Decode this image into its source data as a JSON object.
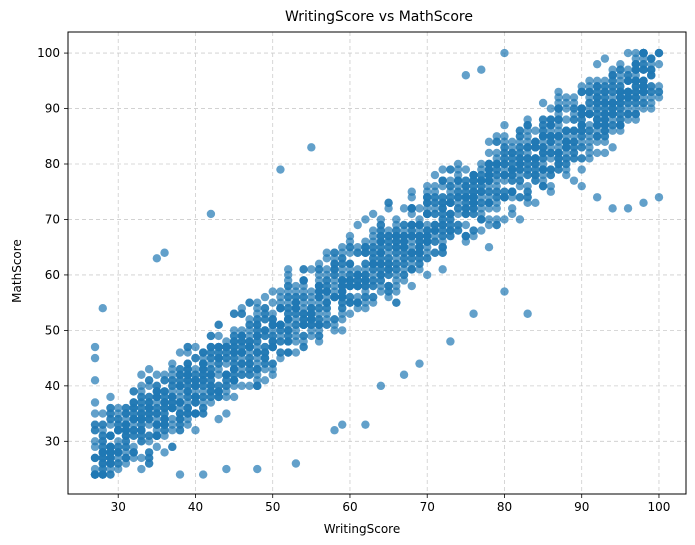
{
  "chart_data": {
    "type": "scatter",
    "title": "WritingScore vs MathScore",
    "xlabel": "WritingScore",
    "ylabel": "MathScore",
    "xlim": [
      23.5,
      103.5
    ],
    "ylim": [
      20.5,
      103.8
    ],
    "xticks": [
      30,
      40,
      50,
      60,
      70,
      80,
      90,
      100
    ],
    "yticks": [
      30,
      40,
      50,
      60,
      70,
      80,
      90,
      100
    ],
    "grid": true,
    "grid_style": "dashed",
    "legend": "none",
    "marker_color": "#1f77b4",
    "marker_alpha": 0.7,
    "relationship": {
      "x_range": [
        27,
        100
      ],
      "y_range": [
        24,
        100
      ],
      "trend": "strong positive linear",
      "approx_slope": 0.95,
      "approx_intercept": 2,
      "band_half_width": 11,
      "point_count": 2000
    },
    "points_sample": [
      [
        28,
        54
      ],
      [
        35,
        63
      ],
      [
        36,
        64
      ],
      [
        42,
        71
      ],
      [
        51,
        79
      ],
      [
        55,
        83
      ],
      [
        75,
        96
      ],
      [
        77,
        97
      ],
      [
        80,
        100
      ],
      [
        59,
        33
      ],
      [
        62,
        33
      ],
      [
        58,
        32
      ],
      [
        53,
        26
      ],
      [
        48,
        25
      ],
      [
        44,
        25
      ],
      [
        41,
        24
      ],
      [
        38,
        24
      ],
      [
        28,
        24
      ],
      [
        100,
        74
      ],
      [
        98,
        73
      ],
      [
        96,
        72
      ],
      [
        94,
        72
      ],
      [
        92,
        74
      ],
      [
        90,
        76
      ],
      [
        86,
        75
      ],
      [
        82,
        70
      ],
      [
        78,
        65
      ],
      [
        27,
        47
      ],
      [
        27,
        45
      ],
      [
        27,
        41
      ],
      [
        27,
        37
      ],
      [
        27,
        35
      ],
      [
        27,
        33
      ],
      [
        27,
        29
      ],
      [
        27,
        27
      ],
      [
        83,
        53
      ],
      [
        80,
        57
      ],
      [
        76,
        53
      ],
      [
        73,
        48
      ],
      [
        69,
        44
      ],
      [
        67,
        42
      ],
      [
        64,
        40
      ]
    ]
  }
}
